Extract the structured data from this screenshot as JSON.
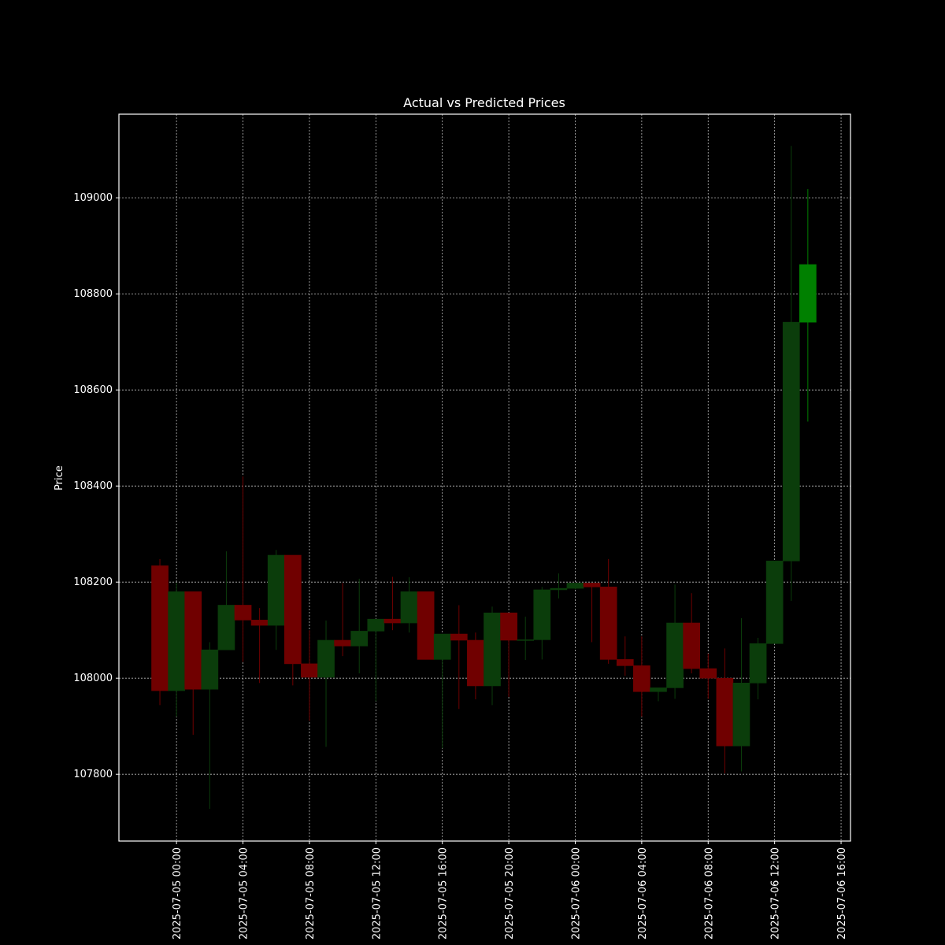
{
  "chart_data": {
    "type": "candlestick",
    "title": "Actual vs Predicted Prices",
    "y_label": "Price",
    "actual": {
      "up_color": "#0b3d0b",
      "down_color": "#700000",
      "x": [
        "2025-07-04 23:00",
        "2025-07-05 00:00",
        "2025-07-05 01:00",
        "2025-07-05 02:00",
        "2025-07-05 03:00",
        "2025-07-05 04:00",
        "2025-07-05 05:00",
        "2025-07-05 06:00",
        "2025-07-05 07:00",
        "2025-07-05 08:00",
        "2025-07-05 09:00",
        "2025-07-05 10:00",
        "2025-07-05 11:00",
        "2025-07-05 12:00",
        "2025-07-05 13:00",
        "2025-07-05 14:00",
        "2025-07-05 15:00",
        "2025-07-05 16:00",
        "2025-07-05 17:00",
        "2025-07-05 18:00",
        "2025-07-05 19:00",
        "2025-07-05 20:00",
        "2025-07-05 21:00",
        "2025-07-05 22:00",
        "2025-07-05 23:00",
        "2025-07-06 00:00",
        "2025-07-06 01:00",
        "2025-07-06 02:00",
        "2025-07-06 03:00",
        "2025-07-06 04:00",
        "2025-07-06 05:00",
        "2025-07-06 06:00",
        "2025-07-06 07:00",
        "2025-07-06 08:00",
        "2025-07-06 09:00",
        "2025-07-06 10:00",
        "2025-07-06 11:00",
        "2025-07-06 12:00",
        "2025-07-06 13:00"
      ],
      "open": [
        108234,
        107974,
        108180,
        107977,
        108059,
        108152,
        108121,
        108110,
        108256,
        108030,
        108002,
        108079,
        108067,
        108098,
        108123,
        108115,
        108180,
        108039,
        108092,
        108079,
        107984,
        108136,
        108079,
        108080,
        108184,
        108187,
        108198,
        108190,
        108039,
        108026,
        107972,
        107980,
        108115,
        108020,
        108000,
        107859,
        107990,
        108072,
        108244
      ],
      "high": [
        108248,
        108198,
        108180,
        108075,
        108264,
        108420,
        108146,
        108267,
        108256,
        108100,
        108120,
        108198,
        108207,
        108123,
        108211,
        108210,
        108180,
        108092,
        108152,
        108095,
        108149,
        108136,
        108128,
        108190,
        108218,
        108198,
        108198,
        108248,
        108087,
        108087,
        107980,
        108195,
        108177,
        108051,
        108062,
        108125,
        108084,
        108244,
        109108
      ],
      "low": [
        107944,
        107920,
        107882,
        107728,
        108059,
        108034,
        107990,
        108059,
        107985,
        107911,
        107857,
        108046,
        108010,
        107952,
        108100,
        108095,
        108039,
        107854,
        107936,
        107956,
        107944,
        107961,
        108038,
        108039,
        108166,
        108185,
        108075,
        108030,
        108005,
        107920,
        107952,
        107957,
        108010,
        107957,
        107802,
        107806,
        107956,
        108072,
        108161
      ],
      "close": [
        107974,
        108180,
        107977,
        108059,
        108152,
        108121,
        108110,
        108256,
        108030,
        108002,
        108079,
        108067,
        108098,
        108123,
        108115,
        108180,
        108039,
        108092,
        108079,
        107984,
        108136,
        108079,
        108080,
        108184,
        108187,
        108198,
        108190,
        108039,
        108026,
        107972,
        107980,
        108115,
        108020,
        108000,
        107859,
        107990,
        108072,
        108244,
        108741
      ]
    },
    "predicted": {
      "color": "#008000",
      "x": [
        "2025-07-06 14:00"
      ],
      "open": [
        108741
      ],
      "high": [
        109018
      ],
      "low": [
        108534
      ],
      "close": [
        108861
      ]
    },
    "xlim": [
      "2025-07-04 20:32",
      "2025-07-06 16:34"
    ],
    "xticks": [
      "2025-07-05 00:00",
      "2025-07-05 04:00",
      "2025-07-05 08:00",
      "2025-07-05 12:00",
      "2025-07-05 16:00",
      "2025-07-05 20:00",
      "2025-07-06 00:00",
      "2025-07-06 04:00",
      "2025-07-06 08:00",
      "2025-07-06 12:00",
      "2025-07-06 16:00"
    ],
    "ylim": [
      107661,
      109174
    ],
    "yticks": [
      107800,
      108000,
      108200,
      108400,
      108600,
      108800,
      109000
    ],
    "grid": true
  }
}
